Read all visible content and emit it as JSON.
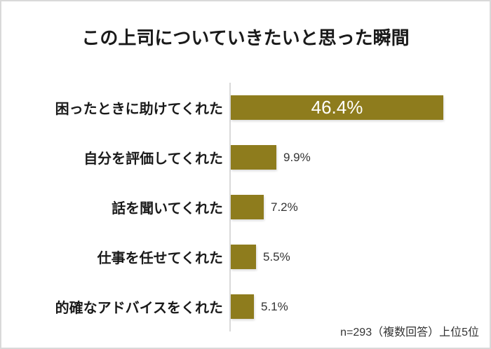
{
  "title": "この上司についていきたいと思った瞬間",
  "note": "n=293（複数回答）上位5位",
  "colors": {
    "bar": "#8e7c1d",
    "axis": "#d9d9d9",
    "frame_border": "#d9d9d9",
    "background": "#ffffff",
    "title_text": "#1a1a1a",
    "category_text": "#1a1a1a",
    "value_inside_text": "#ffffff",
    "value_outside_text": "#333333"
  },
  "chart_data": {
    "type": "bar",
    "orientation": "horizontal",
    "title": "この上司についていきたいと思った瞬間",
    "categories": [
      "困ったときに助けてくれた",
      "自分を評価してくれた",
      "話を聞いてくれた",
      "仕事を任せてくれた",
      "的確なアドバイスをくれた"
    ],
    "values": [
      46.4,
      9.9,
      7.2,
      5.5,
      5.1
    ],
    "value_labels": [
      "46.4%",
      "9.9%",
      "7.2%",
      "5.5%",
      "5.1%"
    ],
    "value_label_position": [
      "inside",
      "outside",
      "outside",
      "outside",
      "outside"
    ],
    "unit": "%",
    "xlim": [
      0,
      55.6
    ],
    "grid": false,
    "legend": false,
    "annotation": "n=293（複数回答）上位5位"
  }
}
